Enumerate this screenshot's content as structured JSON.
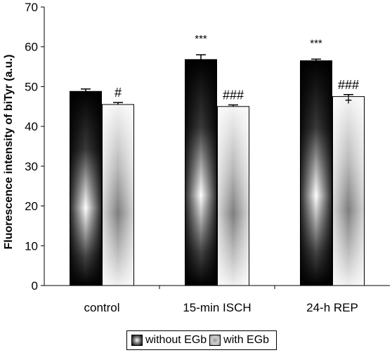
{
  "chart_data": {
    "type": "bar",
    "categories": [
      "control",
      "15-min ISCH",
      "24-h REP"
    ],
    "series": [
      {
        "name": "without EGb",
        "values": [
          48.8,
          56.8,
          56.5
        ],
        "errors": [
          0.6,
          1.2,
          0.4
        ],
        "annotations": [
          "",
          "***",
          "***"
        ]
      },
      {
        "name": "with EGb",
        "values": [
          45.5,
          45.0,
          47.5
        ],
        "errors": [
          0.5,
          0.4,
          0.5
        ],
        "annotations": [
          "#",
          "###",
          "###\n+"
        ]
      }
    ],
    "ylabel": "Fluorescence intensity of biTyr (a.u.)",
    "xlabel": "",
    "ylim": [
      0,
      70
    ],
    "yticks": [
      "0",
      "10",
      "20",
      "30",
      "40",
      "50",
      "60",
      "70"
    ],
    "grid": false,
    "legend_position": "bottom"
  },
  "colors": {
    "dark_series": "#000000",
    "light_series": "#a0a0a0"
  }
}
